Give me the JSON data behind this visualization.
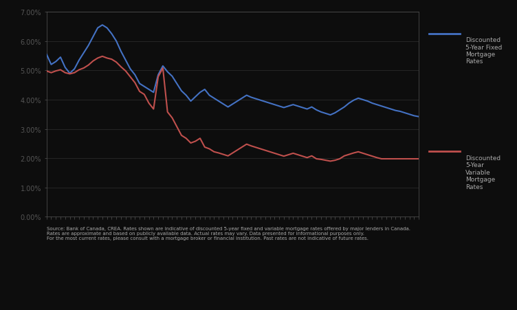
{
  "legend_blue": "Discounted\n5-Year Fixed\nMortgage\nRates",
  "legend_red": "Discounted\n5-Year\nVariable\nMortgage\nRates",
  "ylim": [
    0.0,
    0.07
  ],
  "yticks": [
    0.0,
    0.01,
    0.02,
    0.03,
    0.04,
    0.05,
    0.06,
    0.07
  ],
  "ytick_labels": [
    "0.00%",
    "1.00%",
    "2.00%",
    "3.00%",
    "4.00%",
    "5.00%",
    "6.00%",
    "7.00%"
  ],
  "blue_color": "#4472C4",
  "red_color": "#C0504D",
  "background_color": "#0D0D0D",
  "plot_bg": "#0D0D0D",
  "grid_color": "#2A2A2A",
  "text_color": "#AAAAAA",
  "tick_color": "#555555",
  "blue_data": [
    0.0555,
    0.052,
    0.053,
    0.0545,
    0.051,
    0.049,
    0.0505,
    0.0535,
    0.056,
    0.0585,
    0.0615,
    0.0645,
    0.0655,
    0.0645,
    0.0625,
    0.06,
    0.0565,
    0.0535,
    0.0505,
    0.0485,
    0.0455,
    0.0445,
    0.0435,
    0.0425,
    0.0485,
    0.0515,
    0.0495,
    0.048,
    0.0455,
    0.043,
    0.0415,
    0.0395,
    0.041,
    0.0425,
    0.0435,
    0.0415,
    0.0405,
    0.0395,
    0.0385,
    0.0375,
    0.0385,
    0.0395,
    0.0405,
    0.0415,
    0.0408,
    0.0403,
    0.0398,
    0.0393,
    0.0388,
    0.0383,
    0.0378,
    0.0373,
    0.0378,
    0.0383,
    0.0378,
    0.0373,
    0.0368,
    0.0375,
    0.0365,
    0.0358,
    0.0353,
    0.0348,
    0.0355,
    0.0365,
    0.0375,
    0.0388,
    0.0398,
    0.0405,
    0.04,
    0.0395,
    0.0388,
    0.0383,
    0.0378,
    0.0373,
    0.0368,
    0.0363,
    0.036,
    0.0355,
    0.035,
    0.0345,
    0.0342
  ],
  "red_data": [
    0.0498,
    0.0492,
    0.0498,
    0.0502,
    0.0492,
    0.0488,
    0.0492,
    0.0502,
    0.0508,
    0.0518,
    0.0532,
    0.0542,
    0.0548,
    0.0542,
    0.0538,
    0.0528,
    0.0512,
    0.0498,
    0.0478,
    0.0458,
    0.0428,
    0.0418,
    0.0388,
    0.0368,
    0.0478,
    0.0508,
    0.0358,
    0.0338,
    0.0308,
    0.0278,
    0.0268,
    0.0252,
    0.0258,
    0.0268,
    0.0238,
    0.0232,
    0.0222,
    0.0218,
    0.0213,
    0.0208,
    0.0218,
    0.0228,
    0.0238,
    0.0248,
    0.0242,
    0.0237,
    0.0232,
    0.0227,
    0.0222,
    0.0217,
    0.0212,
    0.0207,
    0.0212,
    0.0217,
    0.0212,
    0.0207,
    0.0202,
    0.0208,
    0.0198,
    0.0196,
    0.0193,
    0.019,
    0.0193,
    0.0198,
    0.0208,
    0.0213,
    0.0218,
    0.0222,
    0.0217,
    0.0212,
    0.0207,
    0.0202,
    0.0198,
    0.0198,
    0.0198,
    0.0198,
    0.0198,
    0.0198,
    0.0198,
    0.0198,
    0.0198
  ],
  "footnote": "Source: Bank of Canada, CREA. Rates shown are indicative of discounted 5-year fixed and variable mortgage rates offered by major lenders in Canada.\nRates are approximate and based on publicly available data. Actual rates may vary. Data presented for informational purposes only.\nFor the most current rates, please consult with a mortgage broker or financial institution. Past rates are not indicative of future rates.",
  "ylabel_fontsize": 7,
  "tick_fontsize": 6
}
